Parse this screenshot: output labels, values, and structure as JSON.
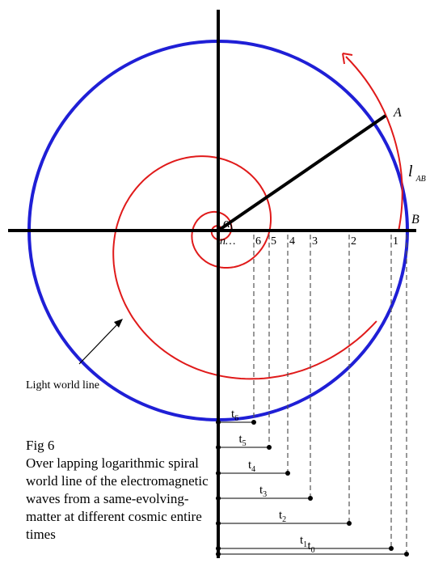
{
  "labels": {
    "point_a": "A",
    "point_b": "B",
    "arc_label_main": "l",
    "arc_label_sub": "AB",
    "angle": "α",
    "origin": "n…",
    "light_world_line": "Light world line"
  },
  "axis_marks": [
    "6",
    "5",
    "4",
    "3",
    "2",
    "1"
  ],
  "time_labels": [
    {
      "main": "t",
      "sub": "6"
    },
    {
      "main": "t",
      "sub": "5"
    },
    {
      "main": "t",
      "sub": "4"
    },
    {
      "main": "t",
      "sub": "3"
    },
    {
      "main": "t",
      "sub": "2"
    },
    {
      "main": "t",
      "sub": "1"
    },
    {
      "main": "t",
      "sub": "0"
    }
  ],
  "caption": {
    "title": "Fig 6",
    "body": "Over lapping logarithmic spiral world line of the electromagnetic waves from a same-evolving-matter at different cosmic entire times"
  },
  "colors": {
    "circle": "#1f1fd6",
    "spiral": "#e01a1a",
    "axes": "#000000",
    "dashed": "#555555"
  }
}
